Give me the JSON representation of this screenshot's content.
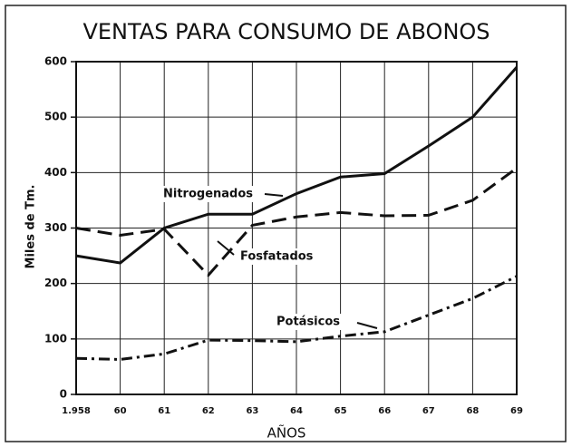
{
  "chart_data": {
    "type": "line",
    "title": "VENTAS PARA CONSUMO DE ABONOS",
    "x_label": "AÑOS",
    "y_label": "Miles de Tm.",
    "categories": [
      "1.958",
      "60",
      "61",
      "62",
      "63",
      "64",
      "65",
      "66",
      "67",
      "68",
      "69"
    ],
    "series": [
      {
        "name": "Nitrogenados",
        "color": "#111111",
        "style": "solid",
        "values": [
          250,
          237,
          300,
          325,
          325,
          362,
          392,
          398,
          448,
          500,
          590
        ]
      },
      {
        "name": "Fosfatados",
        "color": "#111111",
        "style": "dashed",
        "values": [
          300,
          287,
          298,
          215,
          305,
          320,
          328,
          322,
          323,
          350,
          408
        ]
      },
      {
        "name": "Potásicos",
        "color": "#111111",
        "style": "dashdot",
        "values": [
          65,
          63,
          73,
          98,
          97,
          95,
          105,
          113,
          143,
          173,
          213
        ]
      }
    ],
    "ylim": [
      0,
      600
    ],
    "yticks": [
      0,
      100,
      200,
      300,
      400,
      500,
      600
    ],
    "grid": true
  }
}
